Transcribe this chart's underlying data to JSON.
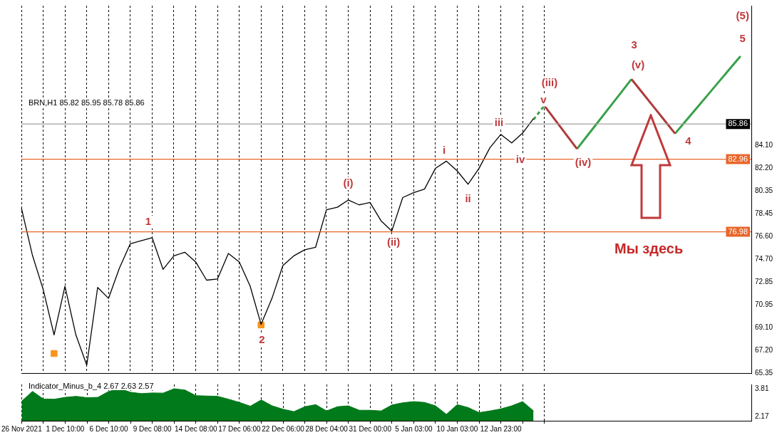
{
  "chart_data": [
    {
      "type": "line",
      "title": "BRN,H1  85.82 85.95 85.78 85.86",
      "categories": [
        null,
        null,
        null,
        null,
        null,
        null,
        null,
        null,
        null,
        null,
        null,
        null,
        null,
        null,
        null,
        null,
        null,
        null,
        null,
        null,
        null,
        null,
        null,
        null,
        null,
        null,
        null,
        null,
        null,
        null,
        null,
        null,
        null,
        null,
        null,
        null,
        null,
        null,
        null,
        null,
        null,
        null,
        null,
        null,
        null,
        null,
        null,
        null,
        null,
        null,
        null,
        null,
        null,
        null,
        null,
        null,
        null,
        null,
        null,
        null,
        null,
        null,
        null,
        null,
        null,
        null,
        null,
        null
      ],
      "ylim": [
        65.35,
        95.6
      ],
      "yticks": [
        65.35,
        {
          "value": 67.2,
          "label": "67.20"
        },
        {
          "value": 69.1,
          "label": "69.10"
        },
        70.95,
        72.85,
        {
          "value": 74.7,
          "label": "74.70"
        },
        {
          "value": 76.6,
          "label": "76.60"
        },
        78.45,
        80.35,
        {
          "value": 82.2,
          "label": "82.20"
        },
        {
          "value": 84.1,
          "label": "84.10"
        }
      ],
      "tick_labels": "y",
      "grid": "x",
      "legend": false,
      "marker": "none",
      "line_style": "solid",
      "series": [
        {
          "color": "#000000",
          "values": [
            78.94,
            75.1,
            72.23,
            68.5,
            72.5,
            68.5,
            66.0,
            72.4,
            71.5,
            74.0,
            76.0,
            76.25,
            76.5,
            73.89,
            75.0,
            75.3,
            74.5,
            73.0,
            73.1,
            75.2,
            74.5,
            72.5,
            69.36,
            71.5,
            74.2,
            75.0,
            75.5,
            75.7,
            78.8,
            79.0,
            79.6,
            79.2,
            79.4,
            77.9,
            77.05,
            79.8,
            80.2,
            80.5,
            82.2,
            82.8,
            82.0,
            80.9,
            82.2,
            83.9,
            85.0,
            84.3,
            85.1,
            86.3,
            null,
            null,
            null,
            null,
            null,
            null,
            null,
            null,
            null,
            null,
            null,
            null,
            null,
            null,
            null,
            null,
            null,
            null,
            null,
            null
          ]
        },
        {
          "type": "scatter",
          "marker": "square",
          "color": "#f7941d",
          "values": [
            null,
            null,
            null,
            66.96,
            null,
            null,
            null,
            null,
            null,
            null,
            null,
            null,
            null,
            null,
            null,
            null,
            null,
            null,
            null,
            null,
            null,
            null,
            69.31,
            null,
            null,
            null,
            null,
            null,
            null,
            null,
            null,
            null,
            null,
            null,
            null,
            null,
            null,
            null,
            null,
            null,
            null,
            null,
            null,
            null,
            null,
            null,
            null,
            null,
            null,
            null,
            null,
            null,
            null,
            null,
            null,
            null,
            null,
            null,
            null,
            null,
            null,
            null,
            null,
            null,
            null,
            null,
            null,
            null
          ]
        },
        {
          "color": "#3aa04a",
          "line_style": "dashed",
          "values": [
            null,
            null,
            null,
            null,
            null,
            null,
            null,
            null,
            null,
            null,
            null,
            null,
            null,
            null,
            null,
            null,
            null,
            null,
            null,
            null,
            null,
            null,
            null,
            null,
            null,
            null,
            null,
            null,
            null,
            null,
            null,
            null,
            null,
            null,
            null,
            null,
            null,
            null,
            null,
            null,
            null,
            null,
            null,
            null,
            null,
            null,
            null,
            86.22,
            87.37,
            null,
            null,
            null,
            null,
            null,
            null,
            null,
            null,
            null,
            null,
            null,
            null,
            null,
            null,
            null,
            null,
            null,
            null,
            null
          ]
        },
        {
          "color": "#b03a3a",
          "values": [
            null,
            null,
            null,
            null,
            null,
            null,
            null,
            null,
            null,
            null,
            null,
            null,
            null,
            null,
            null,
            null,
            null,
            null,
            null,
            null,
            null,
            null,
            null,
            null,
            null,
            null,
            null,
            null,
            null,
            null,
            null,
            null,
            null,
            null,
            null,
            null,
            null,
            null,
            null,
            null,
            null,
            null,
            null,
            null,
            null,
            null,
            null,
            null,
            87.37,
            86.18,
            85.0,
            83.81,
            null,
            null,
            null,
            null,
            89.55,
            88.43,
            87.31,
            86.19,
            85.07,
            null,
            null,
            null,
            null,
            null,
            null,
            null
          ]
        },
        {
          "color": "#3aa04a",
          "values": [
            null,
            null,
            null,
            null,
            null,
            null,
            null,
            null,
            null,
            null,
            null,
            null,
            null,
            null,
            null,
            null,
            null,
            null,
            null,
            null,
            null,
            null,
            null,
            null,
            null,
            null,
            null,
            null,
            null,
            null,
            null,
            null,
            null,
            null,
            null,
            null,
            null,
            null,
            null,
            null,
            null,
            null,
            null,
            null,
            null,
            null,
            null,
            null,
            null,
            null,
            null,
            83.81,
            84.96,
            86.1,
            87.25,
            88.4,
            89.55,
            null,
            null,
            null,
            85.07,
            86.13,
            87.19,
            88.25,
            89.32,
            90.38,
            91.44,
            null
          ]
        }
      ],
      "ref_lines": [
        {
          "axis": "y",
          "value": 85.86,
          "label": "85.86",
          "color": "#a0a0a0"
        },
        {
          "axis": "y",
          "value": 82.96,
          "label": "82.96",
          "color": "#e8662a"
        },
        {
          "axis": "y",
          "value": 76.98,
          "label": "76.98",
          "color": "#e8662a"
        }
      ],
      "annotations": [
        "1",
        "2",
        "(i)",
        "(ii)",
        "i",
        "ii",
        "iii",
        "iv",
        "v",
        "(iii)",
        "(iv)",
        "(v)",
        "3",
        "4",
        "5",
        "(5)",
        "Мы здесь"
      ]
    },
    {
      "type": "area",
      "title": "Indicator_Minus_b_4 2.67 2.63 2.57",
      "categories": [
        "26 Nov 2021",
        null,
        null,
        null,
        "1 Dec 10:00",
        null,
        null,
        null,
        "6 Dec 10:00",
        null,
        null,
        null,
        "9 Dec 08:00",
        null,
        null,
        null,
        "14 Dec 08:00",
        null,
        null,
        null,
        "17 Dec 06:00",
        null,
        null,
        null,
        "22 Dec 06:00",
        null,
        null,
        null,
        "28 Dec 04:00",
        null,
        null,
        null,
        "31 Dec 00:00",
        null,
        null,
        null,
        "5 Jan 03:00",
        null,
        null,
        null,
        "10 Jan 03:00",
        null,
        null,
        null,
        "12 Jan 23:00",
        null,
        null,
        null,
        null,
        null,
        null,
        null,
        null,
        null,
        null,
        null,
        null,
        null,
        null,
        null,
        null,
        null,
        null,
        null,
        null,
        null,
        null,
        null
      ],
      "ylim": [
        1.92,
        4.06
      ],
      "yticks": [
        3.81,
        2.17
      ],
      "grid": "x",
      "legend": false,
      "marker": "none",
      "series": [
        {
          "color": "#007a1a",
          "values": [
            3.07,
            3.65,
            3.2,
            3.19,
            3.3,
            3.36,
            3.28,
            3.3,
            3.65,
            3.81,
            3.6,
            3.52,
            3.56,
            3.55,
            3.81,
            3.73,
            3.4,
            3.38,
            3.36,
            3.19,
            3.0,
            2.78,
            3.15,
            2.8,
            2.6,
            2.46,
            2.75,
            2.87,
            2.5,
            2.75,
            2.8,
            2.54,
            2.54,
            2.5,
            2.85,
            2.98,
            3.05,
            3.0,
            2.8,
            2.3,
            2.87,
            2.7,
            2.4,
            2.5,
            2.62,
            2.8,
            3.05,
            2.5,
            null,
            null,
            null,
            null,
            null,
            null,
            null,
            null,
            null,
            null,
            null,
            null,
            null,
            null,
            null,
            null,
            null,
            null,
            null,
            null
          ]
        }
      ]
    }
  ]
}
